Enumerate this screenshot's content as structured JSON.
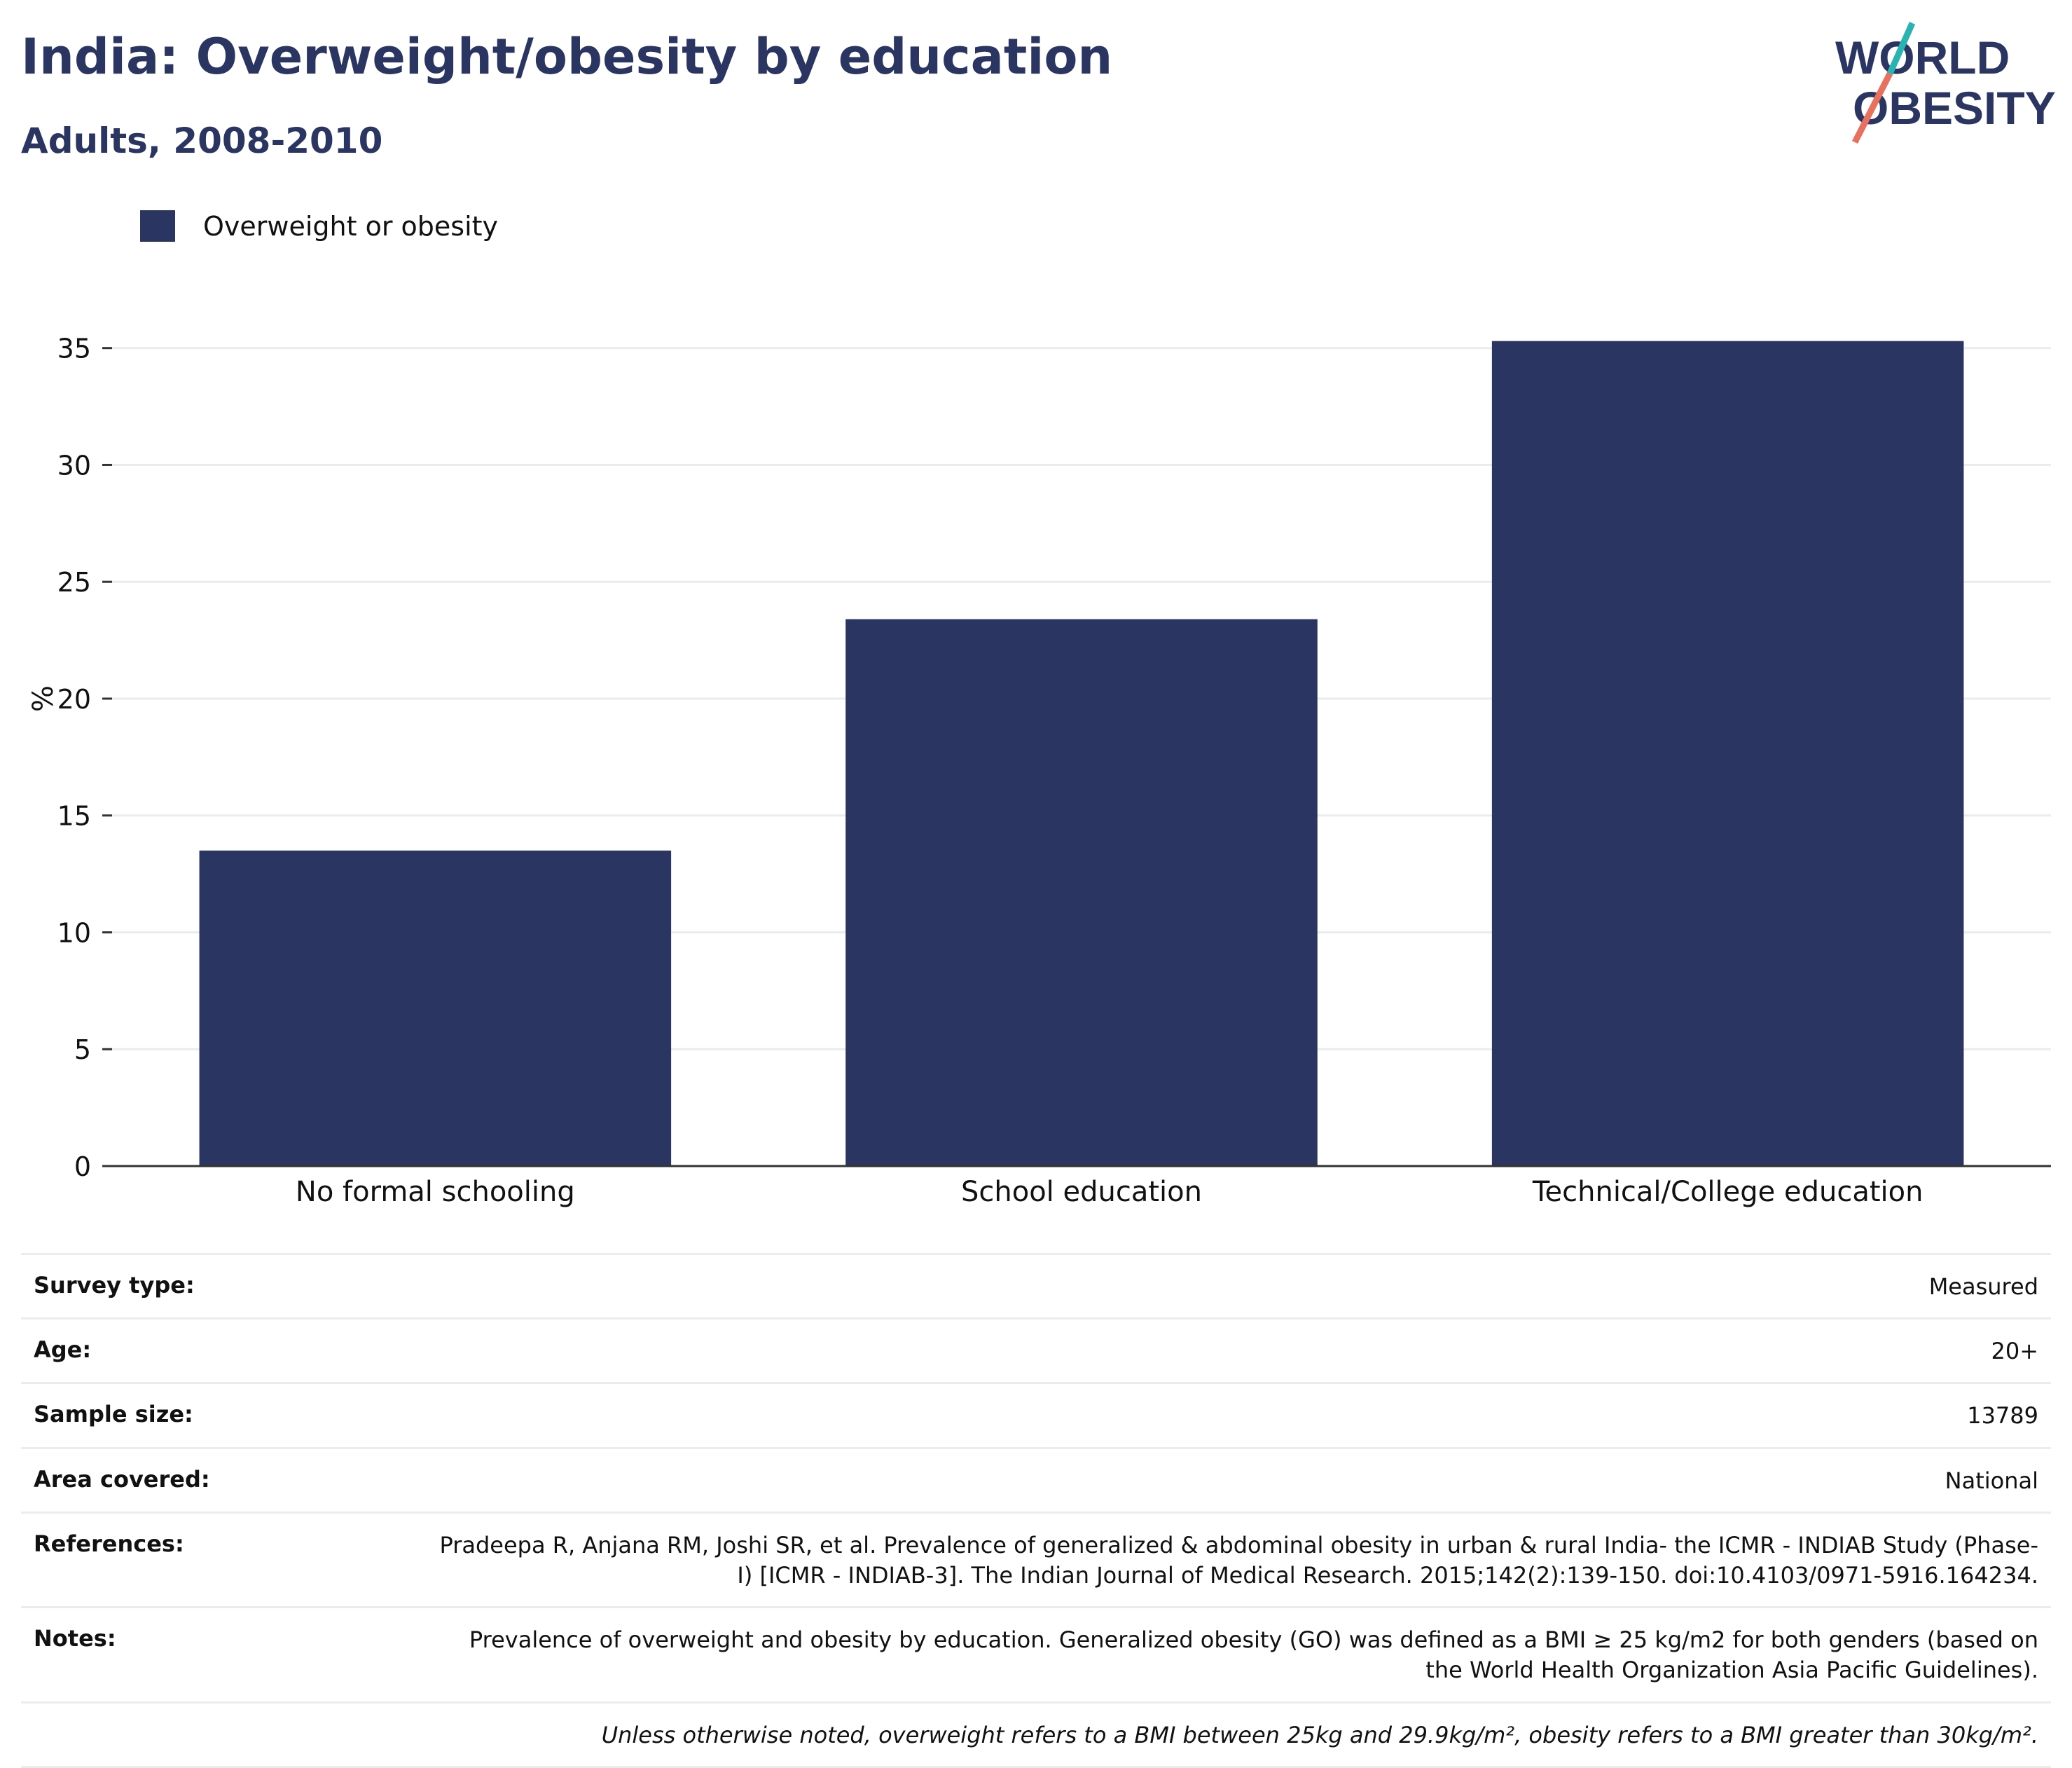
{
  "header": {
    "title": "India: Overweight/obesity by education",
    "subtitle": "Adults, 2008-2010"
  },
  "logo": {
    "line1": "WORLD",
    "line2": "OBESITY"
  },
  "colors": {
    "bar": "#2b3561",
    "text": "#2b3561",
    "logo_teal": "#2bb3b1",
    "logo_coral": "#e8705f"
  },
  "chart_data": {
    "type": "bar",
    "categories": [
      "No formal schooling",
      "School education",
      "Technical/College education"
    ],
    "series": [
      {
        "name": "Overweight or obesity",
        "values": [
          13.5,
          23.4,
          35.3
        ]
      }
    ],
    "title": "India: Overweight/obesity by education",
    "subtitle": "Adults, 2008-2010",
    "xlabel": "",
    "ylabel": "%",
    "ylim": [
      0,
      37
    ],
    "yticks": [
      0,
      5,
      10,
      15,
      20,
      25,
      30,
      35
    ],
    "grid": true,
    "legend_position": "top-left"
  },
  "info": {
    "rows": [
      {
        "key": "Survey type:",
        "value": "Measured"
      },
      {
        "key": "Age:",
        "value": "20+"
      },
      {
        "key": "Sample size:",
        "value": "13789"
      },
      {
        "key": "Area covered:",
        "value": "National"
      },
      {
        "key": "References:",
        "value": "Pradeepa R, Anjana RM, Joshi SR, et al. Prevalence of generalized & abdominal obesity in urban & rural India- the ICMR - INDIAB Study (Phase-I) [ICMR - INDIAB-3]. The Indian Journal of Medical Research. 2015;142(2):139-150. doi:10.4103/0971-5916.164234."
      },
      {
        "key": "Notes:",
        "value": "Prevalence of overweight and obesity by education. Generalized obesity (GO) was defined as a BMI ≥ 25 kg/m2 for both genders (based on the World Health Organization Asia Pacific Guidelines)."
      }
    ],
    "footnote": "Unless otherwise noted, overweight refers to a BMI between 25kg and 29.9kg/m², obesity refers to a BMI greater than 30kg/m²."
  }
}
